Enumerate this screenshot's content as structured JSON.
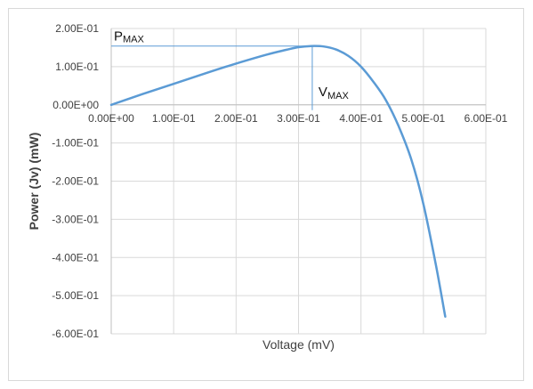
{
  "chart_data": {
    "type": "line",
    "title": "",
    "xlabel": "Voltage (mV)",
    "ylabel": "Power (Jv) (mW)",
    "xlim": [
      0,
      0.6
    ],
    "ylim": [
      -0.6,
      0.2
    ],
    "xticks": [
      0,
      0.1,
      0.2,
      0.3,
      0.4,
      0.5,
      0.6
    ],
    "yticks": [
      0.2,
      0.1,
      0,
      -0.1,
      -0.2,
      -0.3,
      -0.4,
      -0.5,
      -0.6
    ],
    "x_tick_labels": [
      "0.00E+00",
      "1.00E-01",
      "2.00E-01",
      "3.00E-01",
      "4.00E-01",
      "5.00E-01",
      "6.00E-01"
    ],
    "y_tick_labels": [
      "2.00E-01",
      "1.00E-01",
      "0.00E+00",
      "-1.00E-01",
      "-2.00E-01",
      "-3.00E-01",
      "-4.00E-01",
      "-5.00E-01",
      "-6.00E-01"
    ],
    "grid": true,
    "color": "#5b9bd5",
    "series": [
      {
        "x": [
          0,
          0.05,
          0.1,
          0.15,
          0.2,
          0.25,
          0.28,
          0.3,
          0.32,
          0.34,
          0.36,
          0.38,
          0.4,
          0.42,
          0.44,
          0.46,
          0.48,
          0.5,
          0.52,
          0.535
        ],
        "values": [
          0,
          0.028,
          0.055,
          0.082,
          0.108,
          0.132,
          0.144,
          0.151,
          0.154,
          0.153,
          0.145,
          0.128,
          0.1,
          0.06,
          0.012,
          -0.055,
          -0.14,
          -0.26,
          -0.42,
          -0.555
        ]
      }
    ],
    "annotations": {
      "pmax": {
        "main": "P",
        "sub": "MAX",
        "x": 0.322,
        "y": 0.154
      },
      "vmax": {
        "main": "V",
        "sub": "MAX",
        "x": 0.322,
        "y": 0.154
      }
    }
  }
}
